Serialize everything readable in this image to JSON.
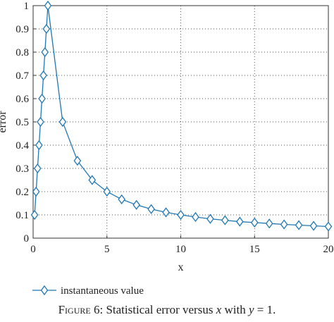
{
  "chart_data": {
    "type": "line",
    "xlabel": "x",
    "ylabel": "error",
    "xlim": [
      0,
      20
    ],
    "ylim": [
      0,
      1
    ],
    "xticks": [
      0,
      5,
      10,
      15,
      20
    ],
    "yticks": [
      0,
      0.1,
      0.2,
      0.3,
      0.4,
      0.5,
      0.6,
      0.7,
      0.8,
      0.9,
      1
    ],
    "grid": "dotted",
    "legend_position": "bottom-left, below plot",
    "series": [
      {
        "name": "instantaneous value",
        "color": "#1f77b4",
        "marker": "diamond",
        "points": [
          [
            0.1,
            0.1
          ],
          [
            0.2,
            0.2
          ],
          [
            0.3,
            0.3
          ],
          [
            0.4,
            0.4
          ],
          [
            0.5,
            0.5
          ],
          [
            0.6,
            0.6
          ],
          [
            0.7,
            0.7
          ],
          [
            0.8,
            0.8
          ],
          [
            0.9,
            0.9
          ],
          [
            1,
            1
          ],
          [
            2,
            0.5
          ],
          [
            3,
            0.333
          ],
          [
            4,
            0.25
          ],
          [
            5,
            0.2
          ],
          [
            6,
            0.167
          ],
          [
            7,
            0.143
          ],
          [
            8,
            0.125
          ],
          [
            9,
            0.111
          ],
          [
            10,
            0.1
          ],
          [
            11,
            0.091
          ],
          [
            12,
            0.083
          ],
          [
            13,
            0.077
          ],
          [
            14,
            0.071
          ],
          [
            15,
            0.067
          ],
          [
            16,
            0.063
          ],
          [
            17,
            0.059
          ],
          [
            18,
            0.056
          ],
          [
            19,
            0.053
          ],
          [
            20,
            0.05
          ]
        ]
      }
    ]
  },
  "caption": {
    "label": "Figure 6",
    "text_before": ": Statistical error versus ",
    "var_x": "x",
    "text_mid": " with ",
    "var_y": "y",
    "text_after": " = 1."
  }
}
